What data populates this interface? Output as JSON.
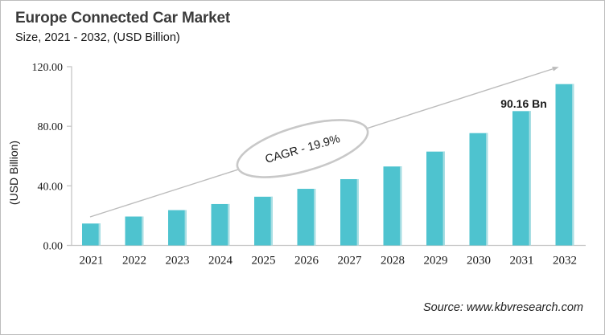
{
  "header": {
    "title": "Europe Connected Car Market",
    "subtitle": "Size, 2021 - 2032, (USD Billion)"
  },
  "footer": {
    "source": "Source: www.kbvresearch.com"
  },
  "colors": {
    "bar": "#4EC3CF",
    "bar_edge": "#A8DEE3",
    "axis": "#C6C6C6",
    "arrow": "#BCBCBC",
    "ellipse_stroke": "#C8C8C8",
    "text": "#1A1A1A"
  },
  "chart_data": {
    "type": "bar",
    "title": "Europe Connected Car Market",
    "subtitle": "Size, 2021 - 2032, (USD Billion)",
    "unit": "USD Billion",
    "categories": [
      "2021",
      "2022",
      "2023",
      "2024",
      "2025",
      "2026",
      "2027",
      "2028",
      "2029",
      "2030",
      "2031",
      "2032"
    ],
    "values": [
      14.7,
      19.4,
      23.7,
      27.8,
      32.7,
      38.0,
      44.5,
      53.0,
      63.0,
      75.4,
      90.16,
      108.3
    ],
    "xlabel": "",
    "ylabel": "(USD Billion)",
    "ylim": [
      0,
      120
    ],
    "y_ticks": [
      {
        "value": 0,
        "label": "0.00"
      },
      {
        "value": 40,
        "label": "40.00"
      },
      {
        "value": 80,
        "label": "80.00"
      },
      {
        "value": 120,
        "label": "120.00"
      }
    ],
    "grid": false,
    "legend": "none",
    "annotations": {
      "cagr_label": "CAGR - 19.9%",
      "data_label": {
        "category": "2031",
        "text": "90.16 Bn"
      },
      "trend_arrow": true
    }
  }
}
